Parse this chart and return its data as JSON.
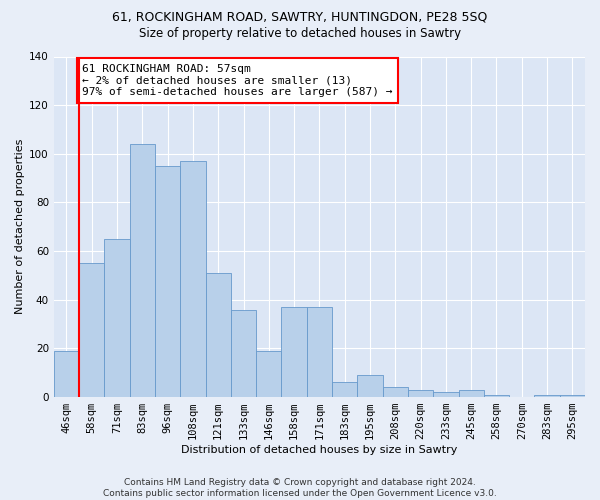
{
  "title": "61, ROCKINGHAM ROAD, SAWTRY, HUNTINGDON, PE28 5SQ",
  "subtitle": "Size of property relative to detached houses in Sawtry",
  "xlabel": "Distribution of detached houses by size in Sawtry",
  "ylabel": "Number of detached properties",
  "bar_color": "#b8d0ea",
  "bar_edge_color": "#6699cc",
  "background_color": "#dce6f5",
  "fig_background": "#e8eef8",
  "categories": [
    "46sqm",
    "58sqm",
    "71sqm",
    "83sqm",
    "96sqm",
    "108sqm",
    "121sqm",
    "133sqm",
    "146sqm",
    "158sqm",
    "171sqm",
    "183sqm",
    "195sqm",
    "208sqm",
    "220sqm",
    "233sqm",
    "245sqm",
    "258sqm",
    "270sqm",
    "283sqm",
    "295sqm"
  ],
  "values": [
    19,
    55,
    65,
    104,
    95,
    97,
    51,
    36,
    19,
    37,
    37,
    6,
    9,
    4,
    3,
    2,
    3,
    1,
    0,
    1,
    1
  ],
  "ylim": [
    0,
    140
  ],
  "yticks": [
    0,
    20,
    40,
    60,
    80,
    100,
    120,
    140
  ],
  "annotation_line1": "61 ROCKINGHAM ROAD: 57sqm",
  "annotation_line2": "← 2% of detached houses are smaller (13)",
  "annotation_line3": "97% of semi-detached houses are larger (587) →",
  "redline_bar_index": 1,
  "footer_line1": "Contains HM Land Registry data © Crown copyright and database right 2024.",
  "footer_line2": "Contains public sector information licensed under the Open Government Licence v3.0.",
  "title_fontsize": 9,
  "subtitle_fontsize": 8.5,
  "annotation_fontsize": 8,
  "axis_label_fontsize": 8,
  "tick_fontsize": 7.5,
  "footer_fontsize": 6.5
}
